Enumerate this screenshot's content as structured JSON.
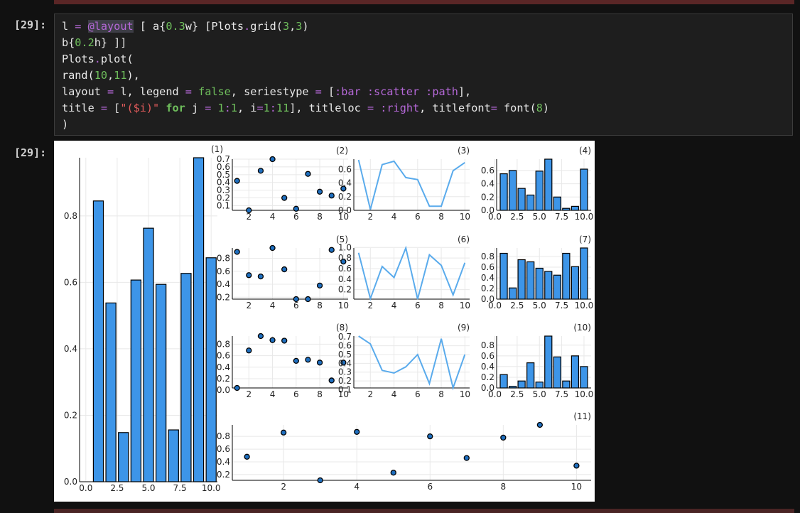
{
  "notebook": {
    "input_prompt": "[29]:",
    "output_prompt": "[29]:",
    "code": {
      "l1a": "l ",
      "l1b": "=",
      "l1c": " ",
      "l1d": "@layout",
      "l1e": " [ a{",
      "l1f": "0.3",
      "l1g": "w} [Plots",
      "l1h": ".",
      "l1i": "grid(",
      "l1j": "3",
      "l1k": ",",
      "l1l": "3",
      "l1m": ")",
      "l2a": "b{",
      "l2b": "0.2",
      "l2c": "h} ]]",
      "l3a": "Plots",
      "l3b": ".",
      "l3c": "plot(",
      "l4a": "rand(",
      "l4b": "10",
      "l4c": ",",
      "l4d": "11",
      "l4e": "),",
      "l5a": "layout ",
      "l5b": "=",
      "l5c": " l, legend ",
      "l5d": "=",
      "l5e": " ",
      "l5f": "false",
      "l5g": ", seriestype ",
      "l5h": "=",
      "l5i": " [",
      "l5j": ":bar",
      "l5k": " ",
      "l5l": ":scatter",
      "l5m": " ",
      "l5n": ":path",
      "l5o": "],",
      "l6a": "title ",
      "l6b": "=",
      "l6c": " [",
      "l6d": "\"($i)\"",
      "l6e": " ",
      "l6f": "for",
      "l6g": " j ",
      "l6h": "=",
      "l6i": " ",
      "l6j": "1",
      "l6k": ":",
      "l6l": "1",
      "l6m": ", i",
      "l6n": "=",
      "l6o": "1",
      "l6p": ":",
      "l6q": "11",
      "l6r": "], titleloc ",
      "l6s": "=",
      "l6t": " ",
      "l6u": ":right",
      "l6v": ", titlefont",
      "l6w": "=",
      "l6x": " font(",
      "l6y": "8",
      "l6z": ")",
      "l7a": ")"
    }
  },
  "colors": {
    "bar_fill": "#3d95e8",
    "line": "#5aabec",
    "marker": "#1f6fbf",
    "accent_purple": "#b568d8",
    "number_green": "#6fbf5c",
    "string_red": "#e05a5a"
  },
  "chart_data": [
    {
      "title": "(1)",
      "type": "bar",
      "x": [
        1,
        2,
        3,
        4,
        5,
        6,
        7,
        8,
        9,
        10
      ],
      "values": [
        0.845,
        0.538,
        0.148,
        0.607,
        0.763,
        0.594,
        0.156,
        0.627,
        0.975,
        0.674
      ],
      "xticks": [
        "0.0",
        "2.5",
        "5.0",
        "7.5",
        "10.0"
      ],
      "yticks": [
        "0.0",
        "0.2",
        "0.4",
        "0.6",
        "0.8"
      ]
    },
    {
      "title": "(2)",
      "type": "scatter",
      "x": [
        1,
        2,
        3,
        4,
        5,
        6,
        7,
        8,
        9,
        10
      ],
      "values": [
        0.42,
        0.04,
        0.55,
        0.7,
        0.2,
        0.06,
        0.51,
        0.28,
        0.23,
        0.32
      ],
      "xticks": [
        "2",
        "4",
        "6",
        "8",
        "10"
      ],
      "yticks": [
        "0.1",
        "0.2",
        "0.3",
        "0.4",
        "0.5",
        "0.6",
        "0.7"
      ]
    },
    {
      "title": "(3)",
      "type": "line",
      "x": [
        1,
        2,
        3,
        4,
        5,
        6,
        7,
        8,
        9,
        10
      ],
      "values": [
        0.74,
        0.01,
        0.67,
        0.72,
        0.48,
        0.45,
        0.06,
        0.06,
        0.58,
        0.7
      ],
      "xticks": [
        "2",
        "4",
        "6",
        "8",
        "10"
      ],
      "yticks": [
        "0.0",
        "0.2",
        "0.4",
        "0.6"
      ]
    },
    {
      "title": "(4)",
      "type": "bar",
      "x": [
        1,
        2,
        3,
        4,
        5,
        6,
        7,
        8,
        9,
        10
      ],
      "values": [
        0.55,
        0.6,
        0.33,
        0.23,
        0.59,
        0.77,
        0.2,
        0.03,
        0.06,
        0.62
      ],
      "xticks": [
        "0.0",
        "2.5",
        "5.0",
        "7.5",
        "10.0"
      ],
      "yticks": [
        "0.0",
        "0.2",
        "0.4",
        "0.6"
      ]
    },
    {
      "title": "(5)",
      "type": "scatter",
      "x": [
        1,
        2,
        3,
        4,
        5,
        6,
        7,
        8,
        9,
        10
      ],
      "values": [
        0.9,
        0.54,
        0.52,
        0.96,
        0.63,
        0.17,
        0.17,
        0.38,
        0.93,
        0.75
      ],
      "xticks": [
        "2",
        "4",
        "6",
        "8",
        "10"
      ],
      "yticks": [
        "0.2",
        "0.4",
        "0.6",
        "0.8"
      ]
    },
    {
      "title": "(6)",
      "type": "line",
      "x": [
        1,
        2,
        3,
        4,
        5,
        6,
        7,
        8,
        9,
        10
      ],
      "values": [
        0.9,
        0.03,
        0.64,
        0.43,
        0.99,
        0.02,
        0.86,
        0.66,
        0.1,
        0.71
      ],
      "xticks": [
        "2",
        "4",
        "6",
        "8",
        "10"
      ],
      "yticks": [
        "0.2",
        "0.4",
        "0.6",
        "0.8",
        "1.0"
      ]
    },
    {
      "title": "(7)",
      "type": "bar",
      "x": [
        1,
        2,
        3,
        4,
        5,
        6,
        7,
        8,
        9,
        10
      ],
      "values": [
        0.86,
        0.21,
        0.74,
        0.7,
        0.58,
        0.52,
        0.45,
        0.86,
        0.61,
        0.96
      ],
      "xticks": [
        "0.0",
        "2.5",
        "5.0",
        "7.5",
        "10.0"
      ],
      "yticks": [
        "0.0",
        "0.2",
        "0.4",
        "0.6",
        "0.8"
      ]
    },
    {
      "title": "(8)",
      "type": "scatter",
      "x": [
        1,
        2,
        3,
        4,
        5,
        6,
        7,
        8,
        9,
        10
      ],
      "values": [
        0.04,
        0.69,
        0.94,
        0.87,
        0.86,
        0.51,
        0.53,
        0.48,
        0.17,
        0.48
      ],
      "xticks": [
        "2",
        "4",
        "6",
        "8",
        "10"
      ],
      "yticks": [
        "0.0",
        "0.2",
        "0.4",
        "0.6",
        "0.8"
      ]
    },
    {
      "title": "(9)",
      "type": "line",
      "x": [
        1,
        2,
        3,
        4,
        5,
        6,
        7,
        8,
        9,
        10
      ],
      "values": [
        0.71,
        0.62,
        0.32,
        0.29,
        0.36,
        0.5,
        0.17,
        0.68,
        0.12,
        0.5
      ],
      "xticks": [
        "2",
        "4",
        "6",
        "8",
        "10"
      ],
      "yticks": [
        "0.1",
        "0.2",
        "0.3",
        "0.4",
        "0.5",
        "0.6",
        "0.7"
      ]
    },
    {
      "title": "(10)",
      "type": "bar",
      "x": [
        1,
        2,
        3,
        4,
        5,
        6,
        7,
        8,
        9,
        10
      ],
      "values": [
        0.25,
        0.03,
        0.13,
        0.47,
        0.11,
        0.97,
        0.58,
        0.13,
        0.6,
        0.4
      ],
      "xticks": [
        "0.0",
        "2.5",
        "5.0",
        "7.5",
        "10.0"
      ],
      "yticks": [
        "0.0",
        "0.2",
        "0.4",
        "0.6",
        "0.8"
      ]
    },
    {
      "title": "(11)",
      "type": "scatter",
      "x": [
        1,
        2,
        3,
        4,
        5,
        6,
        7,
        8,
        9,
        10
      ],
      "values": [
        0.48,
        0.86,
        0.11,
        0.87,
        0.23,
        0.8,
        0.46,
        0.78,
        0.98,
        0.34
      ],
      "xticks": [
        "2",
        "4",
        "6",
        "8",
        "10"
      ],
      "yticks": [
        "0.2",
        "0.4",
        "0.6",
        "0.8"
      ]
    }
  ]
}
